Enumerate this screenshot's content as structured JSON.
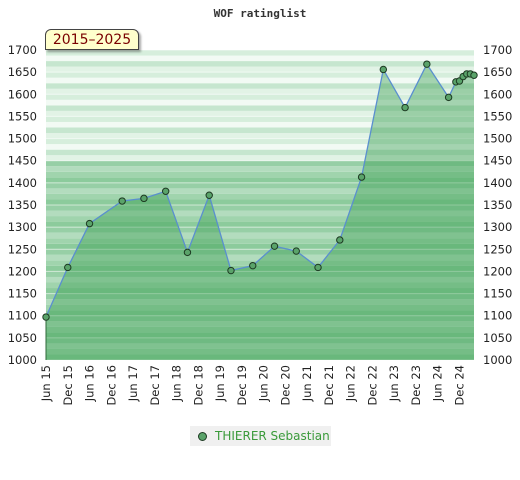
{
  "chart_data": {
    "type": "area",
    "title": "WOF ratinglist",
    "period_label": "2015–2025",
    "xlabel": "",
    "ylabel": "",
    "ylim": [
      1000,
      1700
    ],
    "yticks": [
      1000,
      1050,
      1100,
      1150,
      1200,
      1250,
      1300,
      1350,
      1400,
      1450,
      1500,
      1550,
      1600,
      1650,
      1700
    ],
    "xlim": [
      "2015-06",
      "2025-04"
    ],
    "xtick_labels": [
      "Jun 15",
      "Dec 15",
      "Jun 16",
      "Dec 16",
      "Jun 17",
      "Dec 17",
      "Jun 18",
      "Dec 18",
      "Jun 19",
      "Dec 19",
      "Jun 20",
      "Dec 20",
      "Jun 21",
      "Dec 21",
      "Jun 22",
      "Dec 22",
      "Jun 23",
      "Dec 23",
      "Jun 24",
      "Dec 24"
    ],
    "grid": true,
    "legend_position": "bottom",
    "series": [
      {
        "name": "THIERER Sebastian",
        "color": "#5aa36a",
        "points": [
          {
            "x": "2015-06",
            "y": 1097
          },
          {
            "x": "2015-12",
            "y": 1209
          },
          {
            "x": "2016-06",
            "y": 1308
          },
          {
            "x": "2017-03",
            "y": 1359
          },
          {
            "x": "2017-09",
            "y": 1365
          },
          {
            "x": "2018-03",
            "y": 1381
          },
          {
            "x": "2018-09",
            "y": 1243
          },
          {
            "x": "2019-03",
            "y": 1372
          },
          {
            "x": "2019-09",
            "y": 1202
          },
          {
            "x": "2020-03",
            "y": 1213
          },
          {
            "x": "2020-09",
            "y": 1257
          },
          {
            "x": "2021-03",
            "y": 1246
          },
          {
            "x": "2021-09",
            "y": 1209
          },
          {
            "x": "2022-03",
            "y": 1271
          },
          {
            "x": "2022-09",
            "y": 1413
          },
          {
            "x": "2023-03",
            "y": 1656
          },
          {
            "x": "2023-09",
            "y": 1570
          },
          {
            "x": "2024-03",
            "y": 1668
          },
          {
            "x": "2024-09",
            "y": 1593
          },
          {
            "x": "2024-11",
            "y": 1628
          },
          {
            "x": "2024-12",
            "y": 1630
          },
          {
            "x": "2025-01",
            "y": 1640
          },
          {
            "x": "2025-02",
            "y": 1646
          },
          {
            "x": "2025-03",
            "y": 1646
          },
          {
            "x": "2025-04",
            "y": 1643
          }
        ]
      }
    ]
  }
}
